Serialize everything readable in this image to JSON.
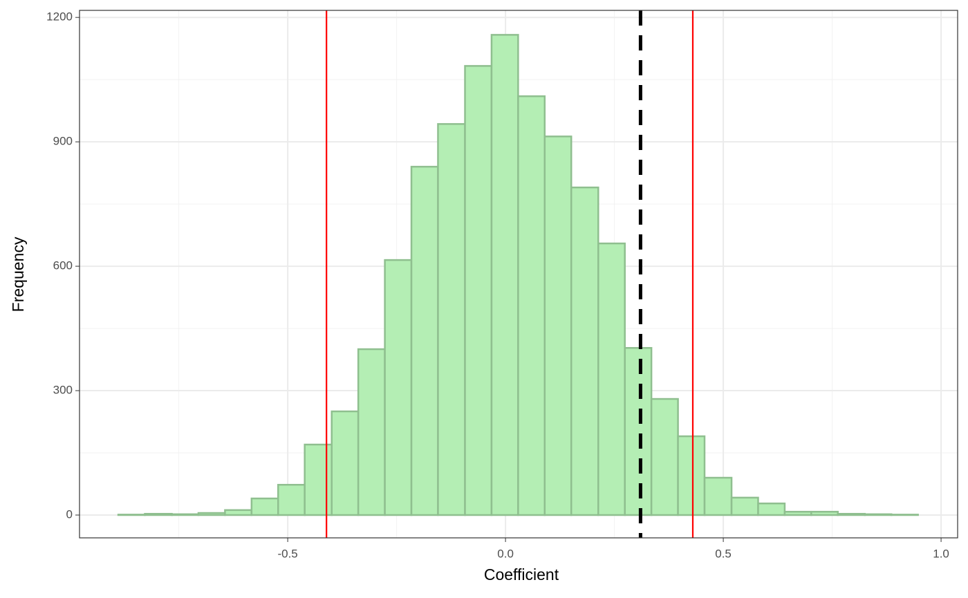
{
  "chart_data": {
    "type": "histogram",
    "x_label": "Coefficient",
    "y_label": "Frequency",
    "bins": [
      -0.889,
      -0.828,
      -0.766,
      -0.705,
      -0.644,
      -0.583,
      -0.522,
      -0.461,
      -0.399,
      -0.338,
      -0.277,
      -0.216,
      -0.155,
      -0.093,
      -0.032,
      0.029,
      0.09,
      0.151,
      0.213,
      0.274,
      0.335,
      0.396,
      0.457,
      0.519,
      0.58,
      0.641,
      0.702,
      0.763,
      0.825,
      0.886,
      0.947
    ],
    "counts": [
      1,
      3,
      2,
      5,
      12,
      40,
      73,
      170,
      250,
      400,
      615,
      840,
      943,
      1083,
      1158,
      1010,
      913,
      790,
      655,
      403,
      280,
      190,
      90,
      42,
      28,
      8,
      8,
      3,
      2,
      1
    ],
    "color": "#b4eeb4",
    "edge_color": "#8fbf8f",
    "vlines": [
      {
        "value": -0.411,
        "color": "#ff0000",
        "style": "solid"
      },
      {
        "value": 0.43,
        "color": "#ff0000",
        "style": "solid"
      },
      {
        "value": 0.31,
        "color": "#000000",
        "style": "dashed"
      }
    ],
    "xlim": [
      -0.978,
      1.038
    ],
    "ylim": [
      -55,
      1217
    ],
    "xticks": [
      -0.5,
      {
        "value": 0,
        "label": "0.0"
      },
      0.5,
      {
        "value": 1,
        "label": "1.0"
      }
    ],
    "yticks": [
      0,
      300,
      600,
      900,
      1200
    ],
    "grid": true,
    "minor_grid": true
  }
}
